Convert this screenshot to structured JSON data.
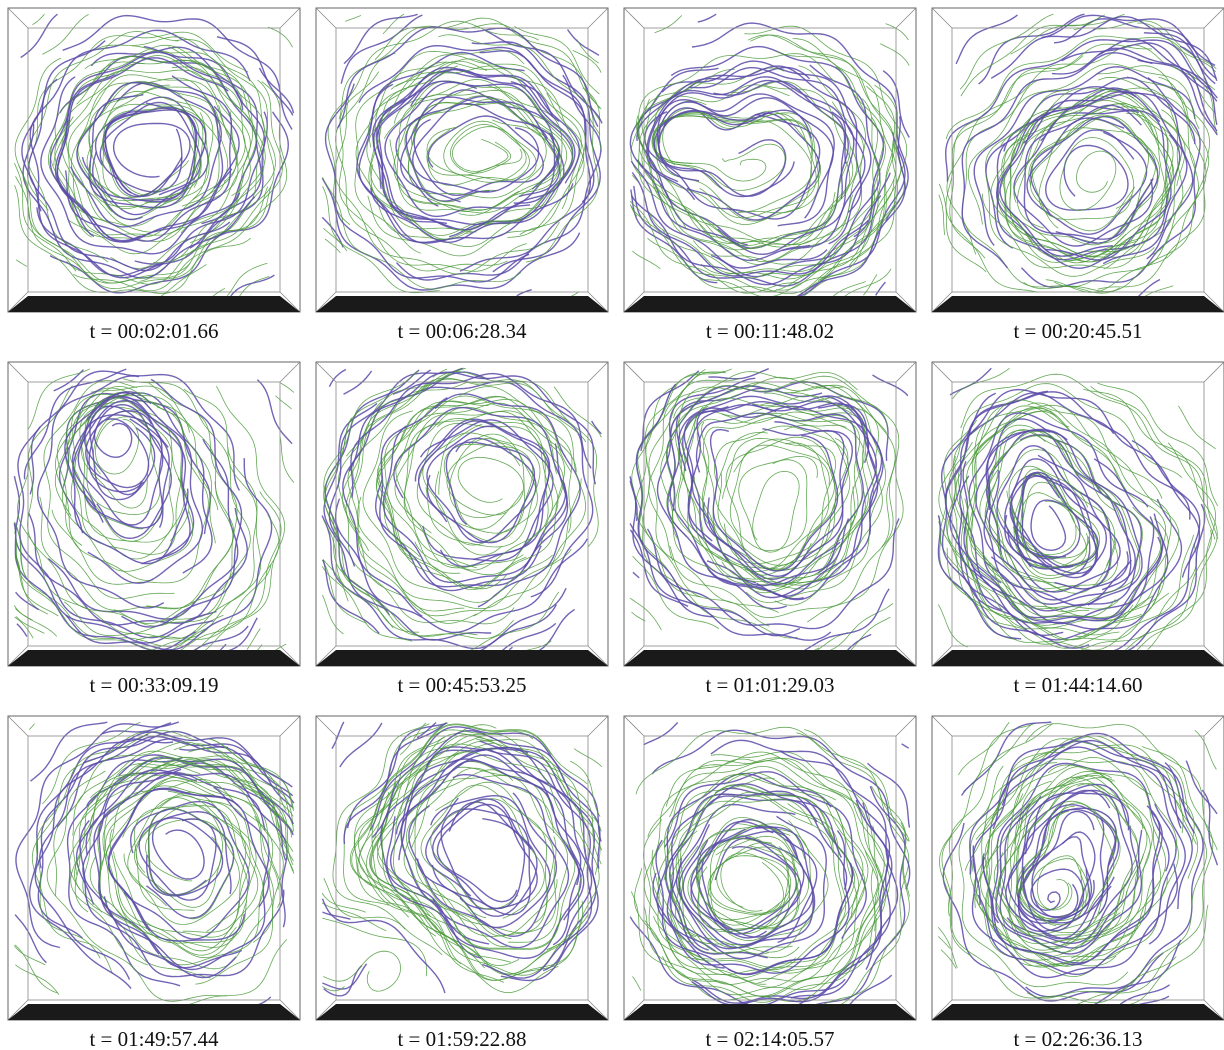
{
  "panels": [
    {
      "label": "t = 00:02:01.66"
    },
    {
      "label": "t = 00:06:28.34"
    },
    {
      "label": "t = 00:11:48.02"
    },
    {
      "label": "t = 00:20:45.51"
    },
    {
      "label": "t = 00:33:09.19"
    },
    {
      "label": "t = 00:45:53.25"
    },
    {
      "label": "t = 01:01:29.03"
    },
    {
      "label": "t = 01:44:14.60"
    },
    {
      "label": "t = 01:49:57.44"
    },
    {
      "label": "t = 01:59:22.88"
    },
    {
      "label": "t = 02:14:05.57"
    },
    {
      "label": "t = 02:26:36.13"
    }
  ]
}
